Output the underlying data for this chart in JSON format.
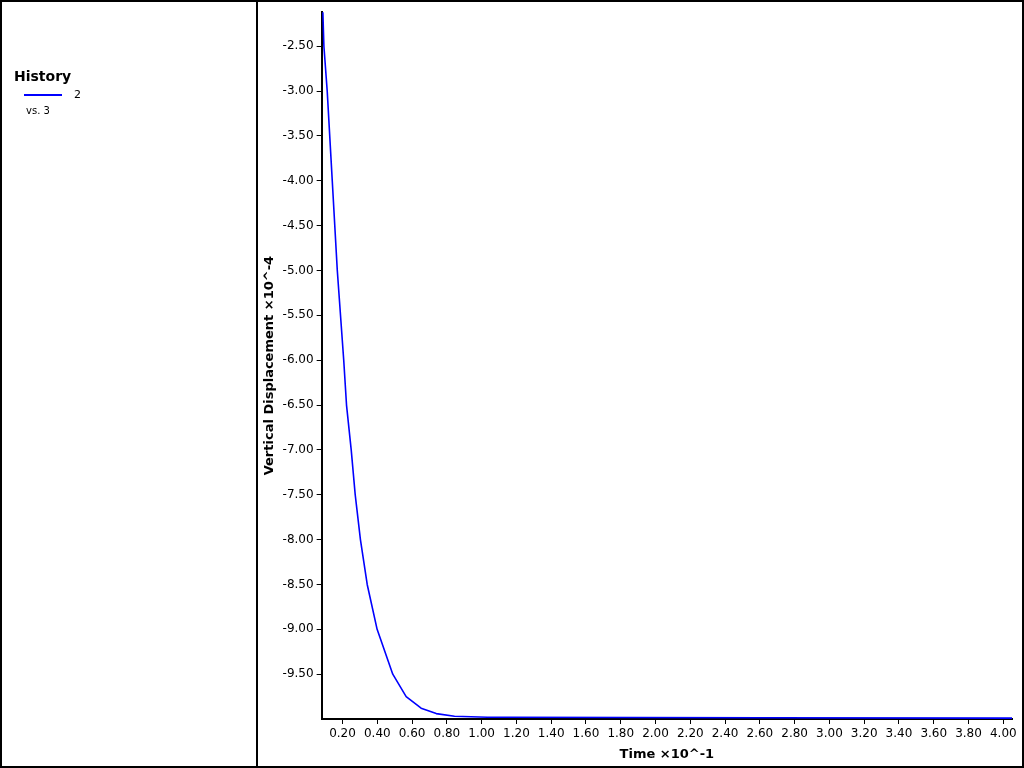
{
  "chart_data": {
    "type": "line",
    "xlabel": "Time ×10^-1",
    "ylabel": "Vertical Displacement ×10^-4",
    "legend_title": "History",
    "legend": "left",
    "annotations": [
      "vs. 3"
    ],
    "marker": "none",
    "line_style": "solid",
    "grid": false,
    "xlim": [
      0.08,
      4.05
    ],
    "ylim": [
      -10.0,
      -2.12
    ],
    "xticks": [
      {
        "value": 0.2,
        "label": "0.20"
      },
      {
        "value": 0.4,
        "label": "0.40"
      },
      {
        "value": 0.6,
        "label": "0.60"
      },
      {
        "value": 0.8,
        "label": "0.80"
      },
      {
        "value": 1.0,
        "label": "1.00"
      },
      {
        "value": 1.2,
        "label": "1.20"
      },
      {
        "value": 1.4,
        "label": "1.40"
      },
      {
        "value": 1.6,
        "label": "1.60"
      },
      {
        "value": 1.8,
        "label": "1.80"
      },
      {
        "value": 2.0,
        "label": "2.00"
      },
      {
        "value": 2.2,
        "label": "2.20"
      },
      {
        "value": 2.4,
        "label": "2.40"
      },
      {
        "value": 2.6,
        "label": "2.60"
      },
      {
        "value": 2.8,
        "label": "2.80"
      },
      {
        "value": 3.0,
        "label": "3.00"
      },
      {
        "value": 3.2,
        "label": "3.20"
      },
      {
        "value": 3.4,
        "label": "3.40"
      },
      {
        "value": 3.6,
        "label": "3.60"
      },
      {
        "value": 3.8,
        "label": "3.80"
      },
      {
        "value": 4.0,
        "label": "4.00"
      }
    ],
    "yticks": [
      {
        "value": -2.5,
        "label": "-2.50"
      },
      {
        "value": -3.0,
        "label": "-3.00"
      },
      {
        "value": -3.5,
        "label": "-3.50"
      },
      {
        "value": -4.0,
        "label": "-4.00"
      },
      {
        "value": -4.5,
        "label": "-4.50"
      },
      {
        "value": -5.0,
        "label": "-5.00"
      },
      {
        "value": -5.5,
        "label": "-5.50"
      },
      {
        "value": -6.0,
        "label": "-6.00"
      },
      {
        "value": -6.5,
        "label": "-6.50"
      },
      {
        "value": -7.0,
        "label": "-7.00"
      },
      {
        "value": -7.5,
        "label": "-7.50"
      },
      {
        "value": -8.0,
        "label": "-8.00"
      },
      {
        "value": -8.5,
        "label": "-8.50"
      },
      {
        "value": -9.0,
        "label": "-9.00"
      },
      {
        "value": -9.5,
        "label": "-9.50"
      }
    ],
    "series": [
      {
        "name": "2",
        "color": "#0000ff",
        "x": [
          0.087,
          0.093,
          0.112,
          0.141,
          0.17,
          0.207,
          0.223,
          0.25,
          0.273,
          0.303,
          0.342,
          0.399,
          0.489,
          0.566,
          0.652,
          0.739,
          0.844,
          1.034,
          4.05
        ],
        "values": [
          -2.12,
          -2.5,
          -3.0,
          -4.0,
          -5.0,
          -6.0,
          -6.5,
          -7.0,
          -7.5,
          -8.0,
          -8.5,
          -9.0,
          -9.5,
          -9.75,
          -9.88,
          -9.94,
          -9.97,
          -9.98,
          -9.99
        ]
      }
    ]
  }
}
